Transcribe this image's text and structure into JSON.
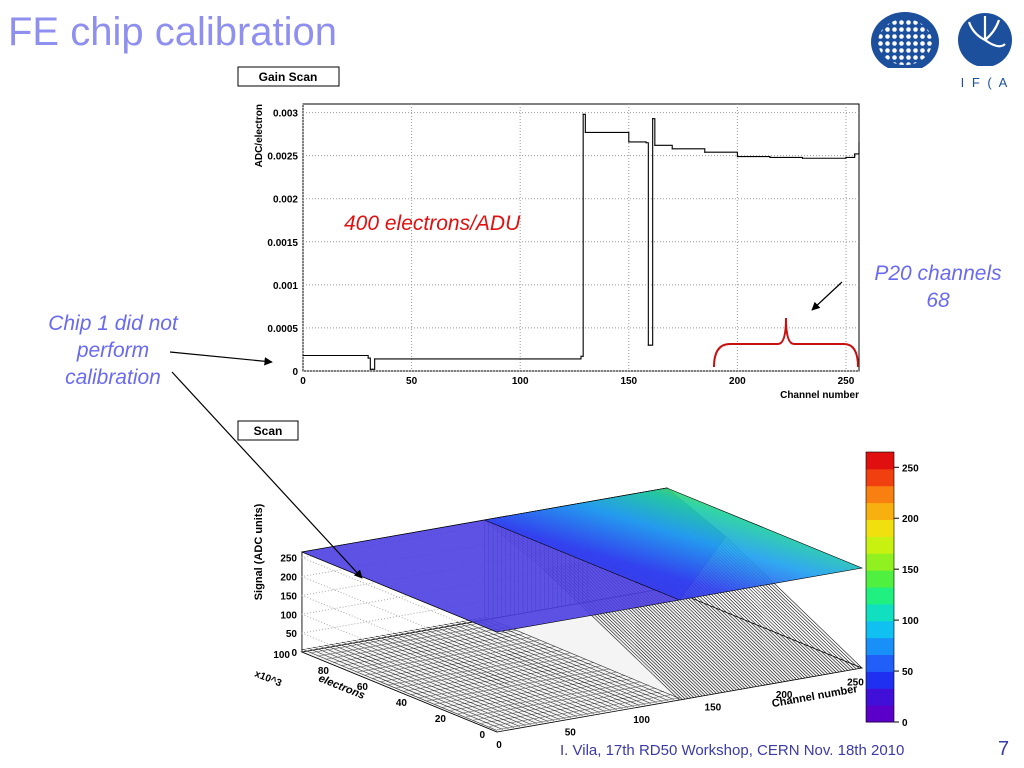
{
  "slide": {
    "title": "FE chip calibration",
    "footer": "I. Vila, 17th RD50 Workshop, CERN  Nov. 18th 2010",
    "page_number": "7",
    "logo2_text": "I F ( A"
  },
  "annotations": {
    "chip1_line1": "Chip 1 did not",
    "chip1_line2": "perform",
    "chip1_line3": "calibration",
    "p20_line1": "P20 channels",
    "p20_line2": "68",
    "electrons": "400 electrons/ADU"
  },
  "colors": {
    "title": "#8f8ff0",
    "annotation": "#6a6af0",
    "highlight": "#e01010",
    "footer": "#3a3aa8"
  },
  "chart_data": [
    {
      "type": "line",
      "title": "Gain Scan",
      "xlabel": "Channel number",
      "ylabel": "ADC/electron",
      "xlim": [
        0,
        256
      ],
      "ylim": [
        0,
        0.0031
      ],
      "x_ticks": [
        0,
        50,
        100,
        150,
        200,
        250
      ],
      "y_ticks": [
        0,
        0.0005,
        0.001,
        0.0015,
        0.002,
        0.0025,
        0.003
      ],
      "y_tick_labels": [
        "0",
        "0.0005",
        "0.001",
        "0.0015",
        "0.002",
        "0.0025",
        "0.003"
      ],
      "grid": true,
      "series": [
        {
          "x": [
            0,
            30,
            31,
            32,
            33,
            128,
            129,
            130,
            150,
            158,
            159,
            160,
            161,
            162,
            170,
            185,
            200,
            215,
            230,
            250,
            254,
            256
          ],
          "y": [
            0.00018,
            0.00015,
            2e-05,
            2e-05,
            0.00014,
            0.00017,
            0.00298,
            0.00277,
            0.00266,
            0.00265,
            0.0003,
            0.0003,
            0.00293,
            0.00262,
            0.00258,
            0.00254,
            0.00249,
            0.00248,
            0.00247,
            0.00248,
            0.00252,
            0.00265
          ]
        }
      ]
    },
    {
      "type": "heatmap",
      "title": "Scan",
      "xlabel": "Channel number",
      "ylabel": "electrons",
      "zlabel": "Signal (ADC units)",
      "x_ticks": [
        0,
        50,
        100,
        150,
        200,
        250
      ],
      "y_ticks": [
        0,
        20,
        40,
        60,
        80,
        100
      ],
      "y_multiplier": "x10^3",
      "z_ticks": [
        0,
        50,
        100,
        150,
        200,
        250
      ],
      "colorbar_ticks": [
        0,
        50,
        100,
        150,
        200,
        250
      ],
      "xlim": [
        0,
        256
      ],
      "ylim": [
        0,
        100
      ],
      "zlim": [
        0,
        265
      ]
    }
  ]
}
